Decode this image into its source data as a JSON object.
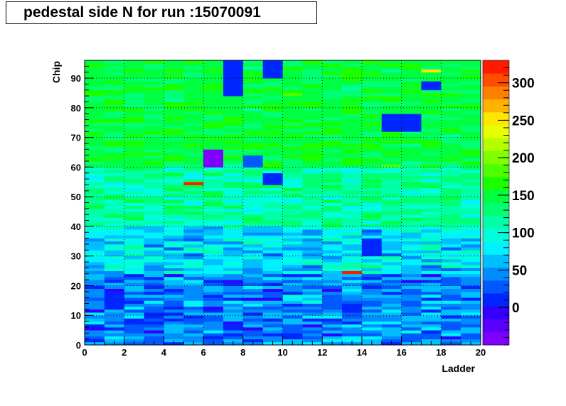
{
  "chart_data": {
    "type": "heatmap",
    "title": "pedestal side N for run :15070091",
    "xlabel": "Ladder",
    "ylabel": "Chip",
    "xlim": [
      0,
      20
    ],
    "ylim": [
      0,
      96
    ],
    "x_ticks": [
      "0",
      "2",
      "4",
      "6",
      "8",
      "10",
      "12",
      "14",
      "16",
      "18",
      "20"
    ],
    "y_ticks": [
      "0",
      "10",
      "20",
      "30",
      "40",
      "50",
      "60",
      "70",
      "80",
      "90"
    ],
    "z_range": [
      -50,
      330
    ],
    "z_ticks": [
      "0",
      "50",
      "100",
      "150",
      "200",
      "250",
      "300"
    ],
    "grid": true,
    "palette": [
      "#7f00ff",
      "#5a00ff",
      "#3300ff",
      "#0026ff",
      "#0059ff",
      "#008cff",
      "#00bfff",
      "#00f2ff",
      "#00ffd9",
      "#00ffa6",
      "#00ff73",
      "#00ff40",
      "#1aff00",
      "#4dff00",
      "#80ff00",
      "#b3ff00",
      "#e6ff00",
      "#ffe600",
      "#ffb300",
      "#ff8000",
      "#ff4d00",
      "#ff1a00"
    ],
    "bands": [
      {
        "y": [
          0,
          24
        ],
        "mean": 40,
        "spread": 55
      },
      {
        "y": [
          24,
          40
        ],
        "mean": 75,
        "spread": 55
      },
      {
        "y": [
          40,
          60
        ],
        "mean": 115,
        "spread": 45
      },
      {
        "y": [
          60,
          96
        ],
        "mean": 148,
        "spread": 30
      }
    ],
    "blocks": [
      {
        "x": [
          7,
          8
        ],
        "y": [
          84,
          96
        ],
        "value": 5
      },
      {
        "x": [
          9,
          10
        ],
        "y": [
          90,
          96
        ],
        "value": 5
      },
      {
        "x": [
          15,
          17
        ],
        "y": [
          72,
          78
        ],
        "value": 5
      },
      {
        "x": [
          6,
          7
        ],
        "y": [
          60,
          66
        ],
        "value": -40
      },
      {
        "x": [
          9,
          10
        ],
        "y": [
          54,
          58
        ],
        "value": 10
      },
      {
        "x": [
          8,
          9
        ],
        "y": [
          60,
          64
        ],
        "value": 30
      },
      {
        "x": [
          17,
          18
        ],
        "y": [
          86,
          89
        ],
        "value": 10
      },
      {
        "x": [
          5,
          6
        ],
        "y": [
          54,
          55
        ],
        "value": 320
      },
      {
        "x": [
          13,
          14
        ],
        "y": [
          24,
          25
        ],
        "value": 330
      },
      {
        "x": [
          17,
          18
        ],
        "y": [
          92,
          93
        ],
        "value": 250
      },
      {
        "x": [
          14,
          15
        ],
        "y": [
          30,
          36
        ],
        "value": 10
      },
      {
        "x": [
          1,
          2
        ],
        "y": [
          12,
          18
        ],
        "value": 10
      }
    ],
    "seed": 15070091
  }
}
